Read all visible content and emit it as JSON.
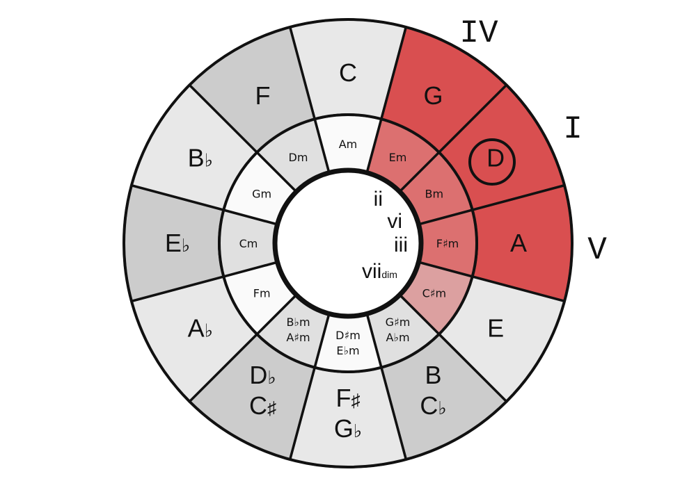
{
  "diagram": {
    "major_keys": [
      {
        "label": [
          "C"
        ],
        "color": "#e8e8e8"
      },
      {
        "label": [
          "G"
        ],
        "color": "#d94f50"
      },
      {
        "label": [
          "D"
        ],
        "color": "#d94f50",
        "circled": true
      },
      {
        "label": [
          "A"
        ],
        "color": "#d94f50"
      },
      {
        "label": [
          "E"
        ],
        "color": "#e8e8e8"
      },
      {
        "label": [
          "B",
          "C♭"
        ],
        "color": "#cccccc"
      },
      {
        "label": [
          "F♯",
          "G♭"
        ],
        "color": "#e8e8e8"
      },
      {
        "label": [
          "D♭",
          "C♯"
        ],
        "color": "#cccccc"
      },
      {
        "label": [
          "A♭"
        ],
        "color": "#e8e8e8"
      },
      {
        "label": [
          "E♭"
        ],
        "color": "#cccccc"
      },
      {
        "label": [
          "B♭"
        ],
        "color": "#e8e8e8"
      },
      {
        "label": [
          "F"
        ],
        "color": "#cccccc"
      }
    ],
    "minor_keys": [
      {
        "label": [
          "Am"
        ],
        "color": "#fafafa"
      },
      {
        "label": [
          "Em"
        ],
        "color": "#dc7070"
      },
      {
        "label": [
          "Bm"
        ],
        "color": "#dc7070"
      },
      {
        "label": [
          "F♯m"
        ],
        "color": "#dc7070"
      },
      {
        "label": [
          "C♯m"
        ],
        "color": "#dca0a0"
      },
      {
        "label": [
          "G♯m",
          "A♭m"
        ],
        "color": "#e0e0e0"
      },
      {
        "label": [
          "D♯m",
          "E♭m"
        ],
        "color": "#fafafa"
      },
      {
        "label": [
          "B♭m",
          "A♯m"
        ],
        "color": "#e0e0e0"
      },
      {
        "label": [
          "Fm"
        ],
        "color": "#fafafa"
      },
      {
        "label": [
          "Cm"
        ],
        "color": "#e0e0e0"
      },
      {
        "label": [
          "Gm"
        ],
        "color": "#fafafa"
      },
      {
        "label": [
          "Dm"
        ],
        "color": "#e0e0e0"
      }
    ],
    "outer_numerals": {
      "iv": "IV",
      "i": "I",
      "v": "V"
    },
    "inner_numerals": {
      "ii": "ii",
      "vi": "vi",
      "iii": "iii",
      "vii": "vii",
      "vii_suffix": "dim"
    }
  }
}
